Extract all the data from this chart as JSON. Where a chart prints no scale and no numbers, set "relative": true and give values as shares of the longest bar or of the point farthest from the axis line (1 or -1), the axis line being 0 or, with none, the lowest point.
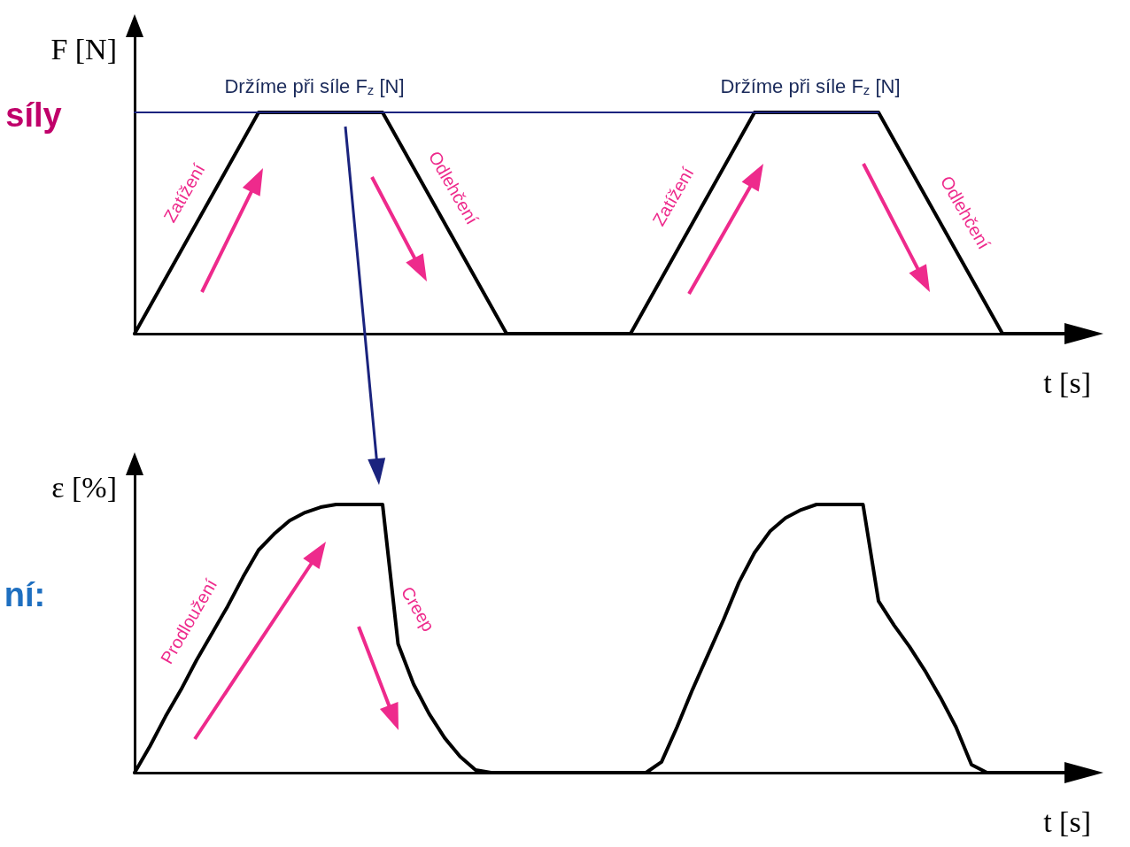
{
  "chart_data": [
    {
      "type": "line",
      "relative": true,
      "ylabel": "F [N]",
      "xlabel": "t [s]",
      "categories": [
        null,
        null,
        null,
        null,
        null,
        null,
        null,
        null,
        null,
        null,
        null,
        null,
        null,
        null,
        null,
        null,
        null,
        null,
        null,
        null,
        null,
        null,
        null,
        null,
        null,
        null,
        null,
        null,
        null,
        null,
        null,
        null,
        null,
        null,
        null,
        null,
        null,
        null,
        null,
        null,
        null,
        null,
        null,
        null,
        null,
        null,
        null,
        null,
        null,
        null,
        null,
        null,
        null,
        null,
        null,
        null,
        null,
        null,
        null,
        null,
        null
      ],
      "series": [
        {
          "color": "#1a237e",
          "values": [
            1,
            1,
            1,
            1,
            1,
            1,
            1,
            1,
            1,
            1,
            1,
            1,
            1,
            1,
            1,
            1,
            1,
            1,
            1,
            1,
            1,
            1,
            1,
            1,
            1,
            1,
            1,
            1,
            1,
            1,
            1,
            1,
            1,
            1,
            1,
            1,
            1,
            1,
            1,
            1,
            1,
            1,
            1,
            1,
            1,
            1,
            1,
            1,
            1,
            null,
            null,
            null,
            null,
            null,
            null,
            null,
            null,
            null,
            null,
            null,
            null
          ]
        },
        {
          "color": "#000000",
          "values": [
            0,
            0.125,
            0.25,
            0.375,
            0.5,
            0.625,
            0.75,
            0.875,
            1,
            1,
            1,
            1,
            1,
            1,
            1,
            1,
            1,
            0.875,
            0.75,
            0.625,
            0.5,
            0.375,
            0.25,
            0.125,
            0,
            0,
            0,
            0,
            0,
            0,
            0,
            0,
            0,
            0.125,
            0.25,
            0.375,
            0.5,
            0.625,
            0.75,
            0.875,
            1,
            1,
            1,
            1,
            1,
            1,
            1,
            1,
            1,
            0.875,
            0.75,
            0.625,
            0.5,
            0.375,
            0.25,
            0.125,
            0,
            0,
            0,
            0,
            0
          ]
        }
      ],
      "annotations": [
        "Držíme při síle F$_{z}$ [N]",
        "Držíme při síle F$_{z}$ [N]",
        "Zatížení",
        "Odlehčení",
        "Zatížení",
        "Odlehčení",
        "síly"
      ]
    },
    {
      "type": "line",
      "relative": true,
      "ylabel": "ε [%]",
      "xlabel": "t [s]",
      "categories": [
        null,
        null,
        null,
        null,
        null,
        null,
        null,
        null,
        null,
        null,
        null,
        null,
        null,
        null,
        null,
        null,
        null,
        null,
        null,
        null,
        null,
        null,
        null,
        null,
        null,
        null,
        null,
        null,
        null,
        null,
        null,
        null,
        null,
        null,
        null,
        null,
        null,
        null,
        null,
        null,
        null,
        null,
        null,
        null,
        null,
        null,
        null,
        null,
        null,
        null,
        null,
        null,
        null,
        null,
        null,
        null,
        null,
        null,
        null,
        null,
        null
      ],
      "series": [
        {
          "color": "#000000",
          "values": [
            0,
            0.1,
            0.21,
            0.31,
            0.42,
            0.52,
            0.62,
            0.73,
            0.83,
            0.89,
            0.94,
            0.97,
            0.99,
            1,
            1,
            1,
            1,
            0.48,
            0.33,
            0.22,
            0.13,
            0.06,
            0.01,
            0,
            0,
            0,
            0,
            0,
            0,
            0,
            0,
            0,
            0,
            0,
            0.04,
            0.17,
            0.31,
            0.44,
            0.57,
            0.71,
            0.82,
            0.9,
            0.95,
            0.98,
            1,
            1,
            1,
            1,
            0.64,
            0.55,
            0.47,
            0.38,
            0.28,
            0.17,
            0.03,
            0,
            0,
            0,
            0,
            0,
            0
          ]
        }
      ],
      "annotations": [
        "Prodloužení",
        "Creep",
        "ní:"
      ]
    }
  ]
}
